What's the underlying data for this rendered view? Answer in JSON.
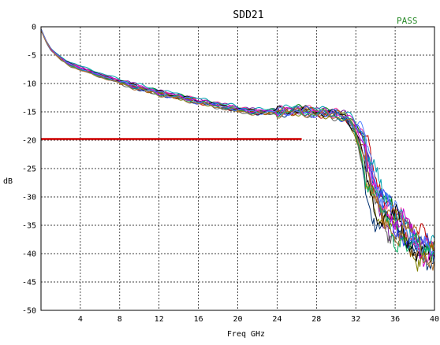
{
  "chart_data": {
    "type": "line",
    "title": "SDD21",
    "status": "PASS",
    "xlabel": "Freq GHz",
    "ylabel": "dB",
    "xlim": [
      0,
      40
    ],
    "ylim": [
      -50,
      0
    ],
    "x_ticks": [
      4,
      8,
      12,
      16,
      20,
      24,
      28,
      32,
      36,
      40
    ],
    "y_ticks": [
      0,
      -5,
      -10,
      -15,
      -20,
      -25,
      -30,
      -35,
      -40,
      -45,
      -50
    ],
    "grid": true,
    "grid_style": "dashed",
    "colors": {
      "status": "#2a8a2a",
      "limit": "#d00000",
      "grid": "#000000",
      "frame": "#000000"
    },
    "limit_line": {
      "x": [
        0,
        26.5
      ],
      "y": [
        -19.8,
        -19.8
      ]
    },
    "series_colors": [
      "#1f3fbf",
      "#c00000",
      "#008000",
      "#7a1fa2",
      "#ff3fa0",
      "#00a0b0",
      "#003070",
      "#808000",
      "#606060",
      "#a05a00",
      "#4040ff",
      "#000000",
      "#d000d0",
      "#00b060",
      "#5080ff",
      "#b07030"
    ],
    "base_curve": {
      "x": [
        0,
        0.5,
        1,
        2,
        3,
        4,
        6,
        8,
        10,
        12,
        14,
        16,
        18,
        20,
        22,
        24,
        26,
        28,
        30,
        31,
        32,
        33,
        34,
        35,
        36,
        37,
        38,
        39,
        40
      ],
      "y": [
        -0.5,
        -2.5,
        -4.0,
        -5.6,
        -6.6,
        -7.3,
        -8.5,
        -9.6,
        -10.7,
        -11.6,
        -12.3,
        -13.1,
        -13.8,
        -14.5,
        -15.0,
        -14.9,
        -14.7,
        -15.0,
        -15.4,
        -15.8,
        -18.0,
        -23.0,
        -29.5,
        -33.5,
        -35.0,
        -36.0,
        -38.0,
        -39.0,
        -40.0
      ]
    }
  }
}
